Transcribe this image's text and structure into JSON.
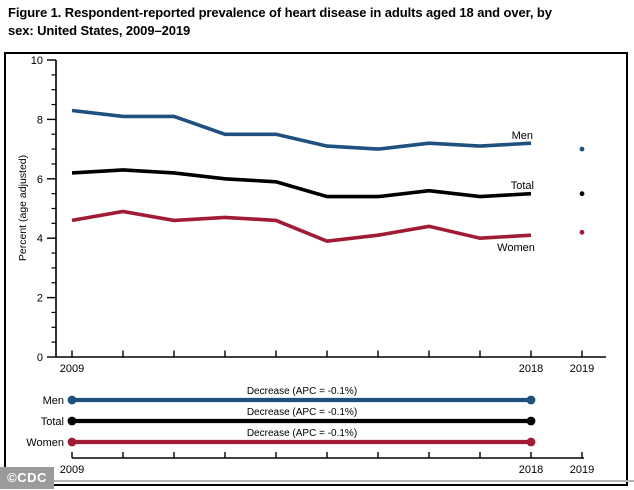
{
  "title": {
    "line1": "Figure 1. Respondent-reported prevalence of heart disease in adults aged 18 and over, by",
    "line2": "sex: United States, 2009–2019"
  },
  "watermark": {
    "label": "©CDC"
  },
  "colors": {
    "men": "#1F5080",
    "total": "#000000",
    "women": "#A01C35",
    "axis": "#000000",
    "watermark_gray": "#9B9B9B"
  },
  "chart_data": {
    "type": "line",
    "title": "Figure 1. Respondent-reported prevalence of heart disease in adults aged 18 and over, by sex: United States, 2009–2019",
    "ylabel": "Percent (age adjusted)",
    "ylim": [
      0,
      10
    ],
    "yticks": [
      0,
      2,
      4,
      6,
      8,
      10
    ],
    "y_minor_tick_step": 0.5,
    "x": [
      2009,
      2010,
      2011,
      2012,
      2013,
      2014,
      2015,
      2016,
      2017,
      2018
    ],
    "x_tick_years": [
      2009,
      2010,
      2011,
      2012,
      2013,
      2014,
      2015,
      2016,
      2017,
      2018,
      2019
    ],
    "x_tick_labels_shown": [
      "2009",
      "2018",
      "2019"
    ],
    "grid": "off",
    "legend_position": "inline-right",
    "series": [
      {
        "name": "Men",
        "color": "#1F5080",
        "values": [
          8.3,
          8.1,
          8.1,
          7.5,
          7.5,
          7.1,
          7.0,
          7.2,
          7.1,
          7.2
        ],
        "value_2019": 7.0
      },
      {
        "name": "Total",
        "color": "#000000",
        "values": [
          6.2,
          6.3,
          6.2,
          6.0,
          5.9,
          5.4,
          5.4,
          5.6,
          5.4,
          5.5
        ],
        "value_2019": 5.5
      },
      {
        "name": "Women",
        "color": "#A01C35",
        "values": [
          4.6,
          4.9,
          4.6,
          4.7,
          4.6,
          3.9,
          4.1,
          4.4,
          4.0,
          4.1
        ],
        "value_2019": 4.2
      }
    ],
    "trend_panel": {
      "rows": [
        {
          "label": "Men",
          "color": "#1F5080",
          "annotation": "Decrease (APC = -0.1%)"
        },
        {
          "label": "Total",
          "color": "#000000",
          "annotation": "Decrease (APC = -0.1%)"
        },
        {
          "label": "Women",
          "color": "#A01C35",
          "annotation": "Decrease (APC = -0.1%)"
        }
      ],
      "span_years": [
        2009,
        2018
      ],
      "x_tick_labels_shown": [
        "2009",
        "2018",
        "2019"
      ]
    }
  }
}
